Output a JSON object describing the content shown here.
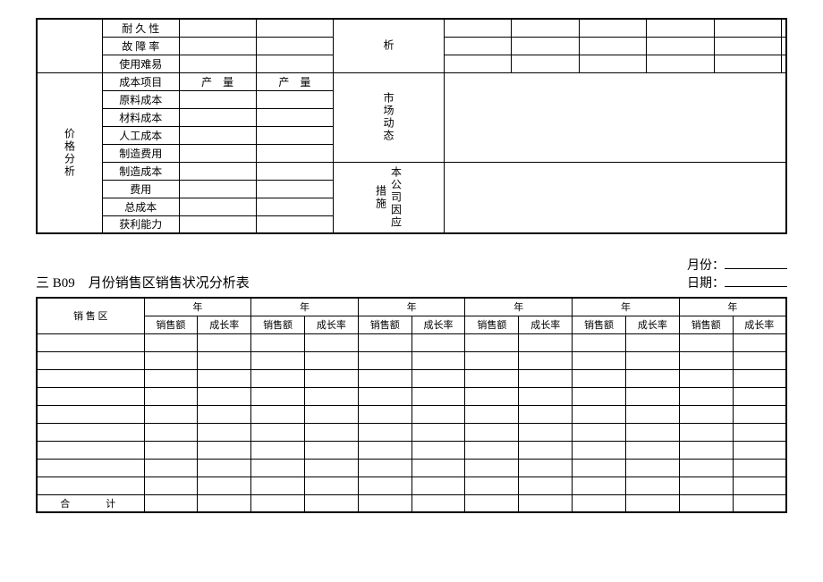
{
  "table1": {
    "empty_side": "",
    "top_rows": [
      "耐 久 性",
      "故 障 率",
      "使用难易"
    ],
    "analysis_label": "析",
    "price_label": "价格分析",
    "cost_header_row": [
      "成本项目",
      "产　量",
      "产　量"
    ],
    "cost_rows": [
      "原料成本",
      "材料成本",
      "人工成本",
      "制造费用",
      "制造成本",
      "费用",
      "总成本",
      "获利能力"
    ],
    "market_label": "市场动态",
    "company_label": "本公司因应措施"
  },
  "section": {
    "title": "三 B09　月份销售区销售状况分析表",
    "month_label": "月份：",
    "date_label": "日期："
  },
  "table2": {
    "sales_region": "销 售 区",
    "year_label": "年",
    "sub_headers": [
      "销售额",
      "成长率"
    ],
    "total_label": "合　　计",
    "body_row_count": 9
  },
  "style": {
    "background_color": "#ffffff",
    "border_color": "#000000",
    "text_color": "#000000",
    "font_family": "SimSun"
  }
}
